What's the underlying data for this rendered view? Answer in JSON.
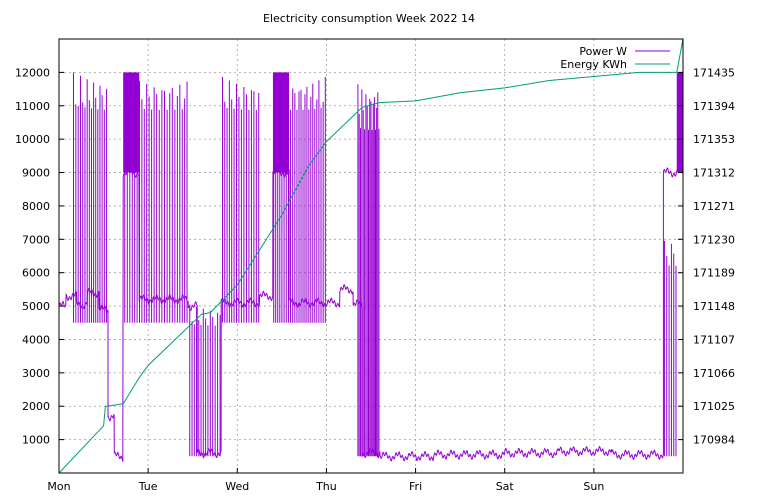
{
  "chart_data": {
    "type": "line",
    "title": "Electricity consumption Week 2022 14",
    "xlabel": "",
    "ylabel": "",
    "x_categories": [
      "Mon",
      "Tue",
      "Wed",
      "Thu",
      "Fri",
      "Sat",
      "Sun"
    ],
    "xlim": [
      0,
      7
    ],
    "ylim": [
      0,
      13000
    ],
    "y_ticks": [
      1000,
      2000,
      3000,
      4000,
      5000,
      6000,
      7000,
      8000,
      9000,
      10000,
      11000,
      12000
    ],
    "y2lim": [
      170943,
      171476
    ],
    "y2_ticks": [
      170984,
      171025,
      171066,
      171107,
      171148,
      171189,
      171230,
      171271,
      171312,
      171353,
      171394,
      171435
    ],
    "grid": true,
    "legend_position": "top-right",
    "colors": {
      "power": "#9400d3",
      "energy": "#009e73"
    },
    "series": [
      {
        "name": "Power W",
        "axis": "left",
        "base_segments": [
          {
            "from": 0.0,
            "to": 0.08,
            "level": 5000
          },
          {
            "from": 0.08,
            "to": 0.2,
            "level": 5300
          },
          {
            "from": 0.2,
            "to": 0.32,
            "level": 5050
          },
          {
            "from": 0.32,
            "to": 0.45,
            "level": 5400
          },
          {
            "from": 0.45,
            "to": 0.55,
            "level": 4900
          },
          {
            "from": 0.55,
            "to": 0.62,
            "level": 1700
          },
          {
            "from": 0.62,
            "to": 0.72,
            "level": 500
          },
          {
            "from": 0.72,
            "to": 0.9,
            "level": 9000
          },
          {
            "from": 0.9,
            "to": 1.45,
            "level": 5200
          },
          {
            "from": 1.45,
            "to": 1.55,
            "level": 5000
          },
          {
            "from": 1.55,
            "to": 1.82,
            "level": 600
          },
          {
            "from": 1.82,
            "to": 2.25,
            "level": 5100
          },
          {
            "from": 2.25,
            "to": 2.4,
            "level": 5300
          },
          {
            "from": 2.4,
            "to": 2.58,
            "level": 9000
          },
          {
            "from": 2.58,
            "to": 3.15,
            "level": 5100
          },
          {
            "from": 3.15,
            "to": 3.3,
            "level": 5500
          },
          {
            "from": 3.3,
            "to": 3.4,
            "level": 5050
          },
          {
            "from": 3.4,
            "to": 3.6,
            "level": 600
          },
          {
            "from": 3.6,
            "to": 4.2,
            "level": 500
          },
          {
            "from": 4.2,
            "to": 5.0,
            "level": 550
          },
          {
            "from": 5.0,
            "to": 5.6,
            "level": 600
          },
          {
            "from": 5.6,
            "to": 6.2,
            "level": 650
          },
          {
            "from": 6.2,
            "to": 6.78,
            "level": 550
          },
          {
            "from": 6.78,
            "to": 6.93,
            "level": 9000
          },
          {
            "from": 6.93,
            "to": 7.0,
            "level": 9000
          }
        ],
        "bursts": [
          {
            "from": 0.15,
            "to": 0.55,
            "min": 4500,
            "max": 12000,
            "count": 16
          },
          {
            "from": 0.72,
            "to": 1.45,
            "min": 4500,
            "max": 12000,
            "count": 26
          },
          {
            "from": 1.45,
            "to": 1.82,
            "min": 500,
            "max": 5100,
            "count": 14
          },
          {
            "from": 1.82,
            "to": 2.25,
            "min": 4500,
            "max": 12000,
            "count": 16
          },
          {
            "from": 2.4,
            "to": 3.0,
            "min": 4500,
            "max": 12000,
            "count": 26
          },
          {
            "from": 3.35,
            "to": 3.6,
            "min": 500,
            "max": 12000,
            "count": 18
          },
          {
            "from": 6.78,
            "to": 6.93,
            "min": 500,
            "max": 7200,
            "count": 6
          }
        ],
        "fills": [
          {
            "from": 0.72,
            "to": 0.9,
            "min": 9000,
            "max": 12000
          },
          {
            "from": 2.4,
            "to": 2.58,
            "min": 9000,
            "max": 12000
          },
          {
            "from": 6.93,
            "to": 7.0,
            "min": 9000,
            "max": 12000
          }
        ]
      },
      {
        "name": "Energy KWh",
        "axis": "right",
        "x": [
          0.0,
          0.5,
          0.52,
          0.54,
          0.72,
          0.9,
          1.0,
          1.6,
          1.7,
          2.0,
          2.5,
          2.8,
          3.0,
          3.4,
          3.6,
          4.0,
          4.5,
          5.0,
          5.5,
          6.0,
          6.5,
          6.93,
          7.0
        ],
        "y": [
          170943,
          171001,
          171025,
          171025,
          171028,
          171060,
          171075,
          171138,
          171140,
          171174,
          171260,
          171320,
          171350,
          171392,
          171398,
          171400,
          171410,
          171416,
          171425,
          171430,
          171435,
          171435,
          171476
        ]
      }
    ]
  }
}
